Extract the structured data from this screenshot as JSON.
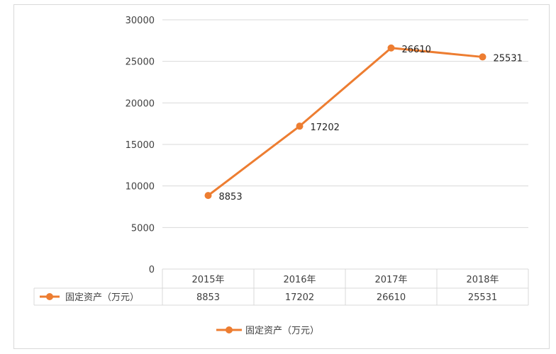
{
  "chart_data": {
    "type": "line",
    "title": "",
    "xlabel": "",
    "ylabel": "",
    "categories": [
      "2015年",
      "2016年",
      "2017年",
      "2018年"
    ],
    "series": [
      {
        "name": "固定资产（万元）",
        "values": [
          8853,
          17202,
          26610,
          25531
        ],
        "color": "#ED7D31"
      }
    ],
    "ylim": [
      0,
      30000
    ],
    "yticks": [
      0,
      5000,
      10000,
      15000,
      20000,
      25000,
      30000
    ],
    "grid": true,
    "data_table": true,
    "legend_position": "bottom"
  },
  "colors": {
    "series": "#ED7D31",
    "grid": "#d9d9d9",
    "text": "#404040"
  }
}
